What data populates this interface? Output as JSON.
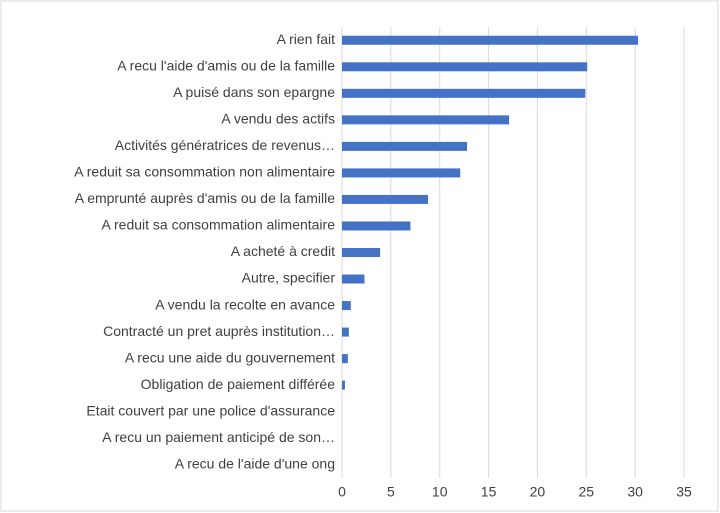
{
  "chart_data": {
    "type": "barh",
    "categories": [
      "A rien fait",
      "A recu l'aide d'amis ou de la famille",
      "A puisé dans son epargne",
      "A vendu des actifs",
      "Activités génératrices de revenus…",
      "A reduit sa consommation non alimentaire",
      "A emprunté auprès d'amis ou de la famille",
      "A reduit sa consommation alimentaire",
      "A acheté à credit",
      "Autre, specifier",
      "A vendu la recolte en avance",
      "Contracté un pret auprès institution…",
      "A recu une aide du gouvernement",
      "Obligation de paiement différée",
      "Etait couvert par une police d'assurance",
      "A recu un paiement anticipé de son…",
      "A recu de l'aide d'une ong"
    ],
    "values": [
      30.3,
      25.1,
      24.9,
      17.1,
      12.8,
      12.1,
      8.8,
      7.0,
      3.9,
      2.3,
      0.9,
      0.7,
      0.6,
      0.3,
      0,
      0,
      0
    ],
    "color": "#4472c4",
    "xlim": [
      0,
      35
    ],
    "xticks": [
      0,
      5,
      10,
      15,
      20,
      25,
      30,
      35
    ],
    "grid": true
  }
}
